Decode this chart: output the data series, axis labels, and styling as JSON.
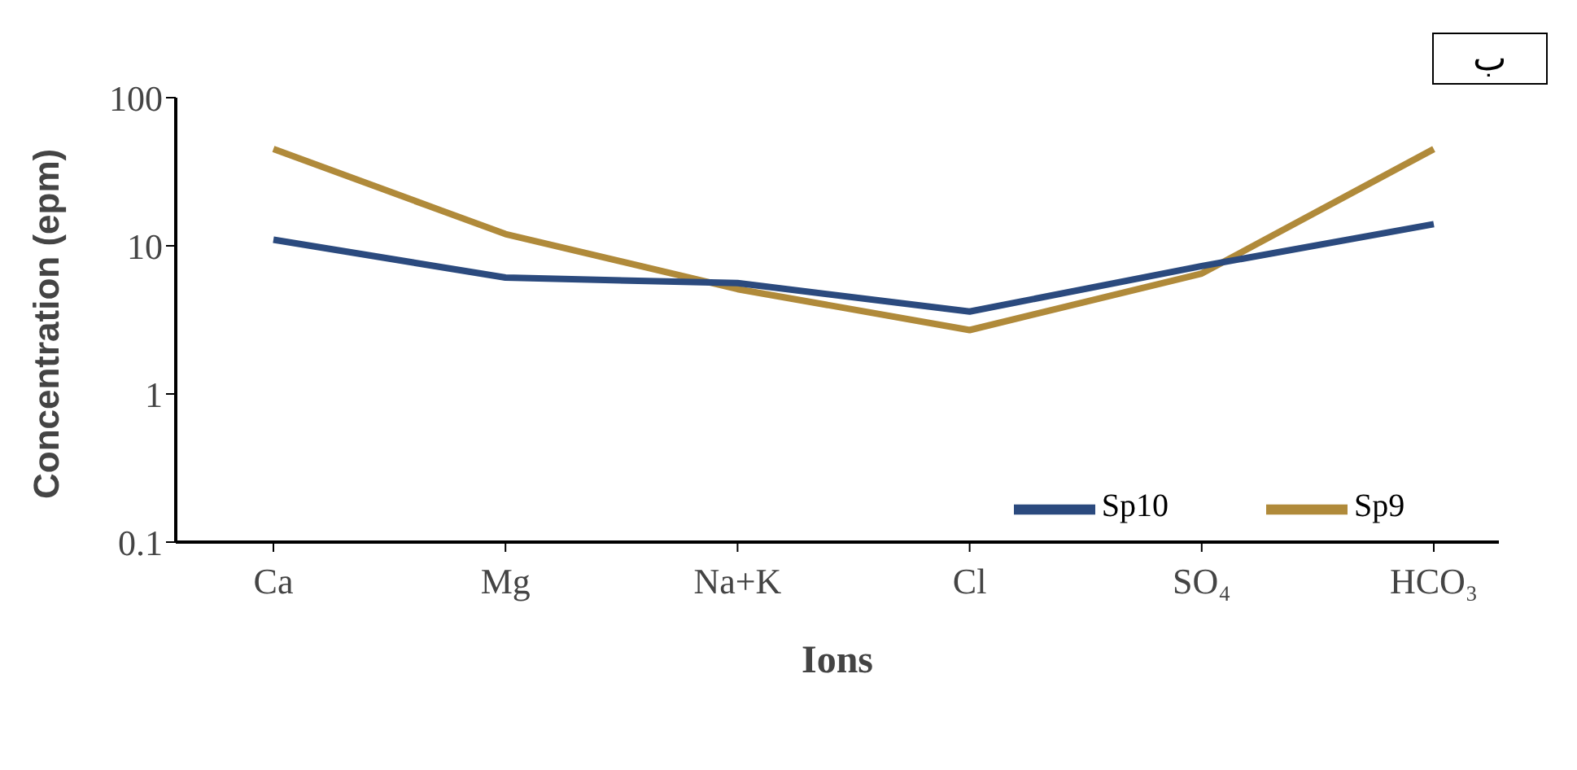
{
  "chart_data": {
    "type": "line",
    "xlabel": "Ions",
    "ylabel": "Concentration (epm)",
    "annotations": [
      "ب"
    ],
    "categories": [
      "Ca",
      "Mg",
      "Na+K",
      "Cl",
      "SO₄",
      "HCO₃"
    ],
    "series": [
      {
        "name": "Sp9",
        "color": "#b08a3a",
        "values": [
          45,
          12,
          5.1,
          2.7,
          6.5,
          45
        ]
      },
      {
        "name": "Sp10",
        "color": "#2b4a7e",
        "values": [
          11,
          6.1,
          5.6,
          3.6,
          7.3,
          14
        ]
      }
    ],
    "log": "y",
    "ylim": [
      0.1,
      100
    ],
    "yticks": [
      0.1,
      1,
      10,
      100
    ],
    "grid": false,
    "legend": "bottom right",
    "marker": "none",
    "line_style": "solid"
  }
}
